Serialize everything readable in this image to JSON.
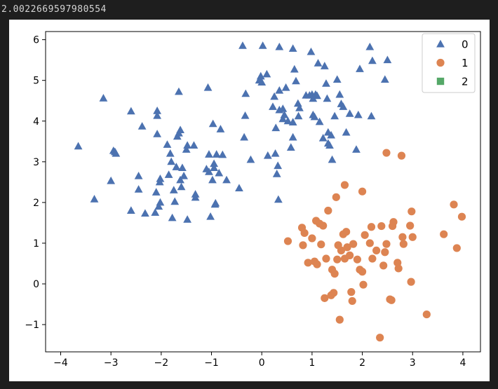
{
  "output": {
    "text": "2.0022669597980554"
  },
  "chart_data": {
    "type": "scatter",
    "title": "",
    "xlabel": "",
    "ylabel": "",
    "xlim": [
      -4.3,
      4.35
    ],
    "ylim": [
      -1.67,
      6.2
    ],
    "xticks": [
      -4,
      -3,
      -2,
      -1,
      0,
      1,
      2,
      3,
      4
    ],
    "yticks": [
      -1,
      0,
      1,
      2,
      3,
      4,
      5,
      6
    ],
    "tick_labels_x": [
      "−4",
      "−3",
      "−2",
      "−1",
      "0",
      "1",
      "2",
      "3",
      "4"
    ],
    "tick_labels_y": [
      "−1",
      "0",
      "1",
      "2",
      "3",
      "4",
      "5",
      "6"
    ],
    "grid": false,
    "legend_position": "top-right",
    "series": [
      {
        "name": "0",
        "marker": "triangle",
        "color": "#4c72b0",
        "points": [
          [
            -3.65,
            3.38
          ],
          [
            -3.33,
            2.08
          ],
          [
            -3.15,
            4.56
          ],
          [
            -3.0,
            2.53
          ],
          [
            -2.95,
            3.27
          ],
          [
            -2.92,
            3.24
          ],
          [
            -2.9,
            3.2
          ],
          [
            -2.6,
            4.24
          ],
          [
            -2.6,
            1.8
          ],
          [
            -2.45,
            2.65
          ],
          [
            -2.45,
            2.32
          ],
          [
            -2.38,
            3.87
          ],
          [
            -2.32,
            1.73
          ],
          [
            -2.12,
            1.75
          ],
          [
            -2.1,
            2.25
          ],
          [
            -2.08,
            3.68
          ],
          [
            -2.08,
            4.13
          ],
          [
            -2.08,
            4.25
          ],
          [
            -2.05,
            1.9
          ],
          [
            -2.03,
            2.5
          ],
          [
            -2.02,
            2.58
          ],
          [
            -2.02,
            2.0
          ],
          [
            -1.88,
            3.42
          ],
          [
            -1.85,
            2.68
          ],
          [
            -1.82,
            3.2
          ],
          [
            -1.8,
            3.0
          ],
          [
            -1.78,
            1.62
          ],
          [
            -1.75,
            2.3
          ],
          [
            -1.73,
            2.02
          ],
          [
            -1.7,
            2.87
          ],
          [
            -1.68,
            3.62
          ],
          [
            -1.65,
            4.72
          ],
          [
            -1.65,
            3.7
          ],
          [
            -1.62,
            3.78
          ],
          [
            -1.62,
            2.55
          ],
          [
            -1.6,
            2.38
          ],
          [
            -1.58,
            2.85
          ],
          [
            -1.55,
            2.65
          ],
          [
            -1.5,
            3.3
          ],
          [
            -1.48,
            3.4
          ],
          [
            -1.48,
            1.58
          ],
          [
            -1.35,
            3.4
          ],
          [
            -1.32,
            2.2
          ],
          [
            -1.32,
            2.12
          ],
          [
            -1.1,
            2.82
          ],
          [
            -1.07,
            4.82
          ],
          [
            -1.05,
            3.18
          ],
          [
            -1.05,
            2.75
          ],
          [
            -1.02,
            1.65
          ],
          [
            -0.98,
            2.55
          ],
          [
            -0.97,
            3.93
          ],
          [
            -0.95,
            2.95
          ],
          [
            -0.95,
            2.85
          ],
          [
            -0.93,
            1.95
          ],
          [
            -0.92,
            1.98
          ],
          [
            -0.9,
            3.18
          ],
          [
            -0.85,
            2.72
          ],
          [
            -0.82,
            3.8
          ],
          [
            -0.78,
            3.17
          ],
          [
            -0.7,
            2.55
          ],
          [
            -0.45,
            2.35
          ],
          [
            -0.38,
            5.85
          ],
          [
            -0.35,
            3.6
          ],
          [
            -0.33,
            4.13
          ],
          [
            -0.32,
            4.67
          ],
          [
            -0.22,
            3.05
          ],
          [
            -0.05,
            5.0
          ],
          [
            -0.02,
            5.1
          ],
          [
            0.0,
            4.95
          ],
          [
            0.02,
            5.85
          ],
          [
            0.1,
            5.15
          ],
          [
            0.12,
            3.15
          ],
          [
            0.22,
            4.35
          ],
          [
            0.25,
            4.6
          ],
          [
            0.27,
            3.2
          ],
          [
            0.28,
            3.83
          ],
          [
            0.3,
            2.7
          ],
          [
            0.32,
            2.9
          ],
          [
            0.33,
            2.07
          ],
          [
            0.35,
            4.27
          ],
          [
            0.35,
            4.75
          ],
          [
            0.35,
            5.82
          ],
          [
            0.42,
            4.05
          ],
          [
            0.42,
            4.3
          ],
          [
            0.45,
            4.15
          ],
          [
            0.48,
            4.82
          ],
          [
            0.52,
            4.0
          ],
          [
            0.58,
            3.35
          ],
          [
            0.62,
            3.97
          ],
          [
            0.62,
            3.6
          ],
          [
            0.62,
            5.78
          ],
          [
            0.65,
            5.27
          ],
          [
            0.68,
            4.98
          ],
          [
            0.72,
            4.43
          ],
          [
            0.73,
            4.12
          ],
          [
            0.75,
            4.32
          ],
          [
            0.88,
            4.63
          ],
          [
            0.95,
            4.63
          ],
          [
            0.98,
            5.7
          ],
          [
            1.0,
            4.65
          ],
          [
            1.02,
            4.15
          ],
          [
            1.02,
            4.55
          ],
          [
            1.05,
            4.1
          ],
          [
            1.07,
            4.65
          ],
          [
            1.1,
            4.62
          ],
          [
            1.12,
            5.42
          ],
          [
            1.15,
            3.98
          ],
          [
            1.22,
            3.58
          ],
          [
            1.25,
            5.35
          ],
          [
            1.28,
            4.92
          ],
          [
            1.3,
            4.55
          ],
          [
            1.32,
            3.72
          ],
          [
            1.32,
            3.45
          ],
          [
            1.35,
            3.4
          ],
          [
            1.38,
            3.65
          ],
          [
            1.4,
            3.05
          ],
          [
            1.45,
            4.12
          ],
          [
            1.5,
            5.02
          ],
          [
            1.55,
            4.65
          ],
          [
            1.58,
            4.42
          ],
          [
            1.62,
            4.35
          ],
          [
            1.68,
            3.72
          ],
          [
            1.75,
            4.18
          ],
          [
            1.88,
            3.3
          ],
          [
            1.92,
            4.15
          ],
          [
            1.95,
            5.28
          ],
          [
            2.15,
            5.82
          ],
          [
            2.18,
            4.12
          ],
          [
            2.2,
            5.48
          ],
          [
            2.45,
            5.02
          ],
          [
            2.5,
            5.5
          ]
        ]
      },
      {
        "name": "1",
        "marker": "circle",
        "color": "#dd8452",
        "points": [
          [
            0.52,
            1.05
          ],
          [
            0.8,
            1.38
          ],
          [
            0.82,
            0.95
          ],
          [
            0.85,
            1.25
          ],
          [
            0.92,
            0.52
          ],
          [
            1.0,
            1.12
          ],
          [
            1.05,
            0.55
          ],
          [
            1.08,
            1.55
          ],
          [
            1.1,
            0.48
          ],
          [
            1.15,
            1.48
          ],
          [
            1.18,
            0.97
          ],
          [
            1.22,
            1.43
          ],
          [
            1.25,
            -0.35
          ],
          [
            1.28,
            0.62
          ],
          [
            1.32,
            1.8
          ],
          [
            1.38,
            -0.28
          ],
          [
            1.4,
            0.35
          ],
          [
            1.43,
            -0.22
          ],
          [
            1.45,
            0.25
          ],
          [
            1.48,
            2.13
          ],
          [
            1.5,
            0.6
          ],
          [
            1.52,
            0.95
          ],
          [
            1.55,
            -0.88
          ],
          [
            1.58,
            0.82
          ],
          [
            1.62,
            1.22
          ],
          [
            1.65,
            0.62
          ],
          [
            1.65,
            2.43
          ],
          [
            1.68,
            1.28
          ],
          [
            1.7,
            0.9
          ],
          [
            1.75,
            0.7
          ],
          [
            1.78,
            -0.2
          ],
          [
            1.8,
            -0.42
          ],
          [
            1.82,
            0.98
          ],
          [
            1.9,
            0.6
          ],
          [
            1.95,
            0.35
          ],
          [
            2.0,
            0.3
          ],
          [
            2.0,
            2.27
          ],
          [
            2.02,
            -0.02
          ],
          [
            2.05,
            1.2
          ],
          [
            2.15,
            1.0
          ],
          [
            2.18,
            1.4
          ],
          [
            2.2,
            0.62
          ],
          [
            2.28,
            0.82
          ],
          [
            2.35,
            -1.32
          ],
          [
            2.38,
            1.42
          ],
          [
            2.42,
            0.45
          ],
          [
            2.45,
            0.78
          ],
          [
            2.48,
            0.98
          ],
          [
            2.48,
            3.22
          ],
          [
            2.55,
            -0.38
          ],
          [
            2.58,
            -0.4
          ],
          [
            2.6,
            1.42
          ],
          [
            2.62,
            1.52
          ],
          [
            2.7,
            0.52
          ],
          [
            2.72,
            0.38
          ],
          [
            2.78,
            3.15
          ],
          [
            2.8,
            1.15
          ],
          [
            2.82,
            0.98
          ],
          [
            2.95,
            1.43
          ],
          [
            2.97,
            0.05
          ],
          [
            2.98,
            1.78
          ],
          [
            3.0,
            1.15
          ],
          [
            3.28,
            -0.75
          ],
          [
            3.62,
            1.22
          ],
          [
            3.82,
            1.95
          ],
          [
            3.88,
            0.88
          ],
          [
            3.98,
            1.65
          ]
        ]
      },
      {
        "name": "2",
        "marker": "square",
        "color": "#55a868",
        "points": []
      }
    ]
  }
}
